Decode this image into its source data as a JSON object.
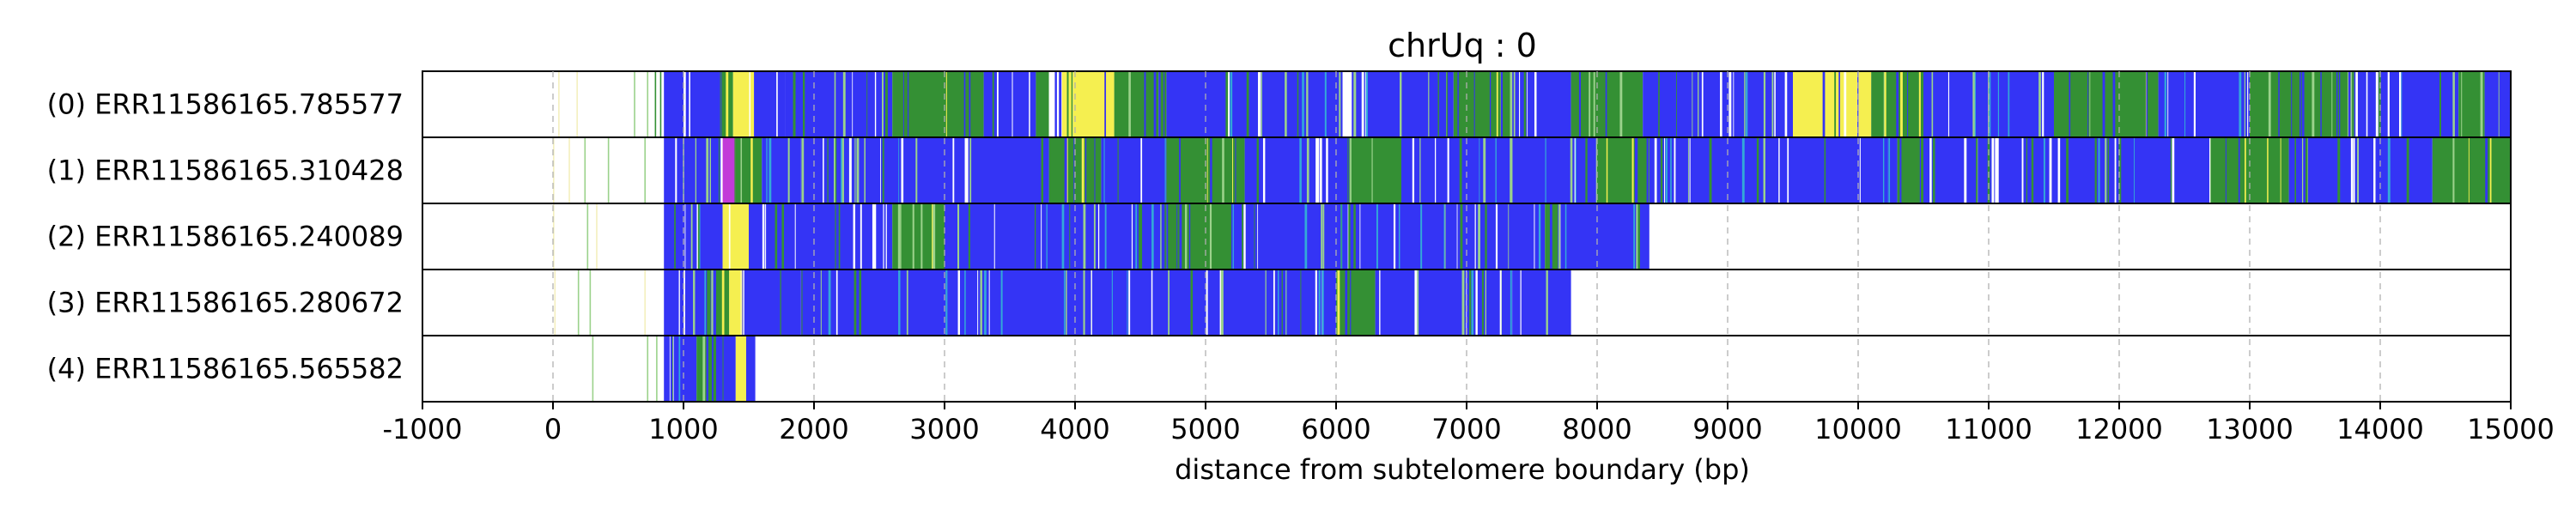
{
  "chart_data": {
    "type": "heatmap",
    "title": "chrUq : 0",
    "xlabel": "distance from subtelomere boundary (bp)",
    "xlim": [
      -1000,
      15000
    ],
    "xticks": [
      "-1000",
      "0",
      "1000",
      "2000",
      "3000",
      "4000",
      "5000",
      "6000",
      "7000",
      "8000",
      "9000",
      "10000",
      "11000",
      "12000",
      "13000",
      "14000",
      "15000"
    ],
    "grid": "x-dashed",
    "palette": {
      "blue": "#3434f5",
      "green": "#349034",
      "yellow": "#f5ef50",
      "white": "#ffffff",
      "cyan": "#33a9d8",
      "magenta": "#c23bd8",
      "light_green": "#9bd28b",
      "pale_yellow": "#f4efbe"
    },
    "reads": [
      {
        "label": "(0) ERR11586165.785577",
        "sparse": [
          [
            40,
            "pale_yellow"
          ],
          [
            180,
            "pale_yellow"
          ],
          [
            620,
            "light_green"
          ],
          [
            720,
            "light_green"
          ],
          [
            780,
            "green"
          ],
          [
            820,
            "green"
          ]
        ],
        "segments": [
          [
            850,
            1300,
            "blue"
          ],
          [
            1300,
            1380,
            "green"
          ],
          [
            1380,
            1540,
            "yellow"
          ],
          [
            1540,
            1780,
            "blue"
          ],
          [
            1780,
            2600,
            "blue"
          ],
          [
            2600,
            3300,
            "green"
          ],
          [
            3300,
            3700,
            "blue"
          ],
          [
            3700,
            3800,
            "green"
          ],
          [
            3800,
            3900,
            "white"
          ],
          [
            3900,
            4300,
            "yellow"
          ],
          [
            4300,
            4700,
            "green"
          ],
          [
            4700,
            6050,
            "blue"
          ],
          [
            6050,
            6120,
            "white"
          ],
          [
            6120,
            6900,
            "blue"
          ],
          [
            6900,
            7350,
            "green"
          ],
          [
            7350,
            7800,
            "blue"
          ],
          [
            7800,
            8350,
            "green"
          ],
          [
            8350,
            9500,
            "blue"
          ],
          [
            9500,
            10100,
            "yellow"
          ],
          [
            10100,
            10500,
            "green"
          ],
          [
            10500,
            11500,
            "blue"
          ],
          [
            11500,
            12300,
            "green"
          ],
          [
            12300,
            13000,
            "blue"
          ],
          [
            13000,
            13800,
            "green"
          ],
          [
            13800,
            14600,
            "blue"
          ],
          [
            14600,
            14800,
            "green"
          ],
          [
            14800,
            15000,
            "blue"
          ]
        ]
      },
      {
        "label": "(1) ERR11586165.310428",
        "sparse": [
          [
            0,
            "pale_yellow"
          ],
          [
            120,
            "pale_yellow"
          ],
          [
            240,
            "light_green"
          ],
          [
            420,
            "light_green"
          ],
          [
            700,
            "light_green"
          ]
        ],
        "segments": [
          [
            850,
            1300,
            "blue"
          ],
          [
            1300,
            1400,
            "magenta"
          ],
          [
            1400,
            1600,
            "green"
          ],
          [
            1600,
            1900,
            "blue"
          ],
          [
            1900,
            3800,
            "blue"
          ],
          [
            3800,
            4200,
            "green"
          ],
          [
            4200,
            4700,
            "blue"
          ],
          [
            4700,
            5300,
            "green"
          ],
          [
            5300,
            6100,
            "blue"
          ],
          [
            6100,
            6500,
            "green"
          ],
          [
            6500,
            8000,
            "blue"
          ],
          [
            8000,
            8400,
            "green"
          ],
          [
            8400,
            10300,
            "blue"
          ],
          [
            10300,
            10500,
            "green"
          ],
          [
            10500,
            12700,
            "blue"
          ],
          [
            12700,
            13300,
            "green"
          ],
          [
            13300,
            14400,
            "blue"
          ],
          [
            14400,
            15000,
            "green"
          ]
        ]
      },
      {
        "label": "(2) ERR11586165.240089",
        "sparse": [
          [
            0,
            "pale_yellow"
          ],
          [
            260,
            "light_green"
          ],
          [
            330,
            "pale_yellow"
          ]
        ],
        "segments": [
          [
            850,
            1300,
            "blue"
          ],
          [
            1300,
            1500,
            "yellow"
          ],
          [
            1500,
            1850,
            "blue"
          ],
          [
            1850,
            2600,
            "blue"
          ],
          [
            2600,
            3000,
            "green"
          ],
          [
            3000,
            4700,
            "blue"
          ],
          [
            4700,
            5200,
            "green"
          ],
          [
            5200,
            7600,
            "blue"
          ],
          [
            7600,
            7700,
            "green"
          ],
          [
            7700,
            8400,
            "blue"
          ]
        ]
      },
      {
        "label": "(3) ERR11586165.280672",
        "sparse": [
          [
            10,
            "pale_yellow"
          ],
          [
            190,
            "light_green"
          ],
          [
            280,
            "light_green"
          ],
          [
            700,
            "pale_yellow"
          ]
        ],
        "segments": [
          [
            850,
            1250,
            "blue"
          ],
          [
            1250,
            1350,
            "green"
          ],
          [
            1350,
            1450,
            "yellow"
          ],
          [
            1450,
            1900,
            "blue"
          ],
          [
            1900,
            6000,
            "blue"
          ],
          [
            6000,
            6300,
            "green"
          ],
          [
            6300,
            7350,
            "blue"
          ],
          [
            7350,
            7800,
            "blue"
          ]
        ]
      },
      {
        "label": "(4) ERR11586165.565582",
        "sparse": [
          [
            300,
            "light_green"
          ],
          [
            720,
            "light_green"
          ],
          [
            790,
            "light_green"
          ]
        ],
        "segments": [
          [
            850,
            1100,
            "blue"
          ],
          [
            1100,
            1250,
            "green"
          ],
          [
            1250,
            1400,
            "blue"
          ],
          [
            1400,
            1480,
            "yellow"
          ],
          [
            1480,
            1550,
            "blue"
          ]
        ]
      }
    ]
  }
}
